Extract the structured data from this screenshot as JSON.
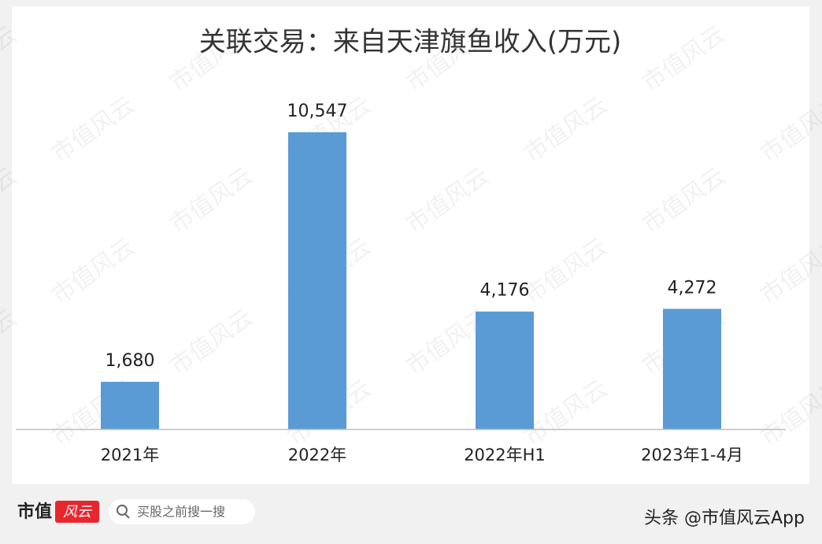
{
  "chart_data": {
    "type": "bar",
    "title": "关联交易：来自天津旗鱼收入(万元)",
    "categories": [
      "2021年",
      "2022年",
      "2022年H1",
      "2023年1-4月"
    ],
    "values": [
      1680,
      10547,
      4176,
      4272
    ],
    "value_labels": [
      "1,680",
      "10,547",
      "4,176",
      "4,272"
    ],
    "color": "#5b9bd5"
  },
  "watermark": "市值风云",
  "footer": {
    "logo_main": "市值",
    "logo_script": "风云",
    "search_placeholder": "买股之前搜一搜",
    "source": "头条 @市值风云App"
  }
}
